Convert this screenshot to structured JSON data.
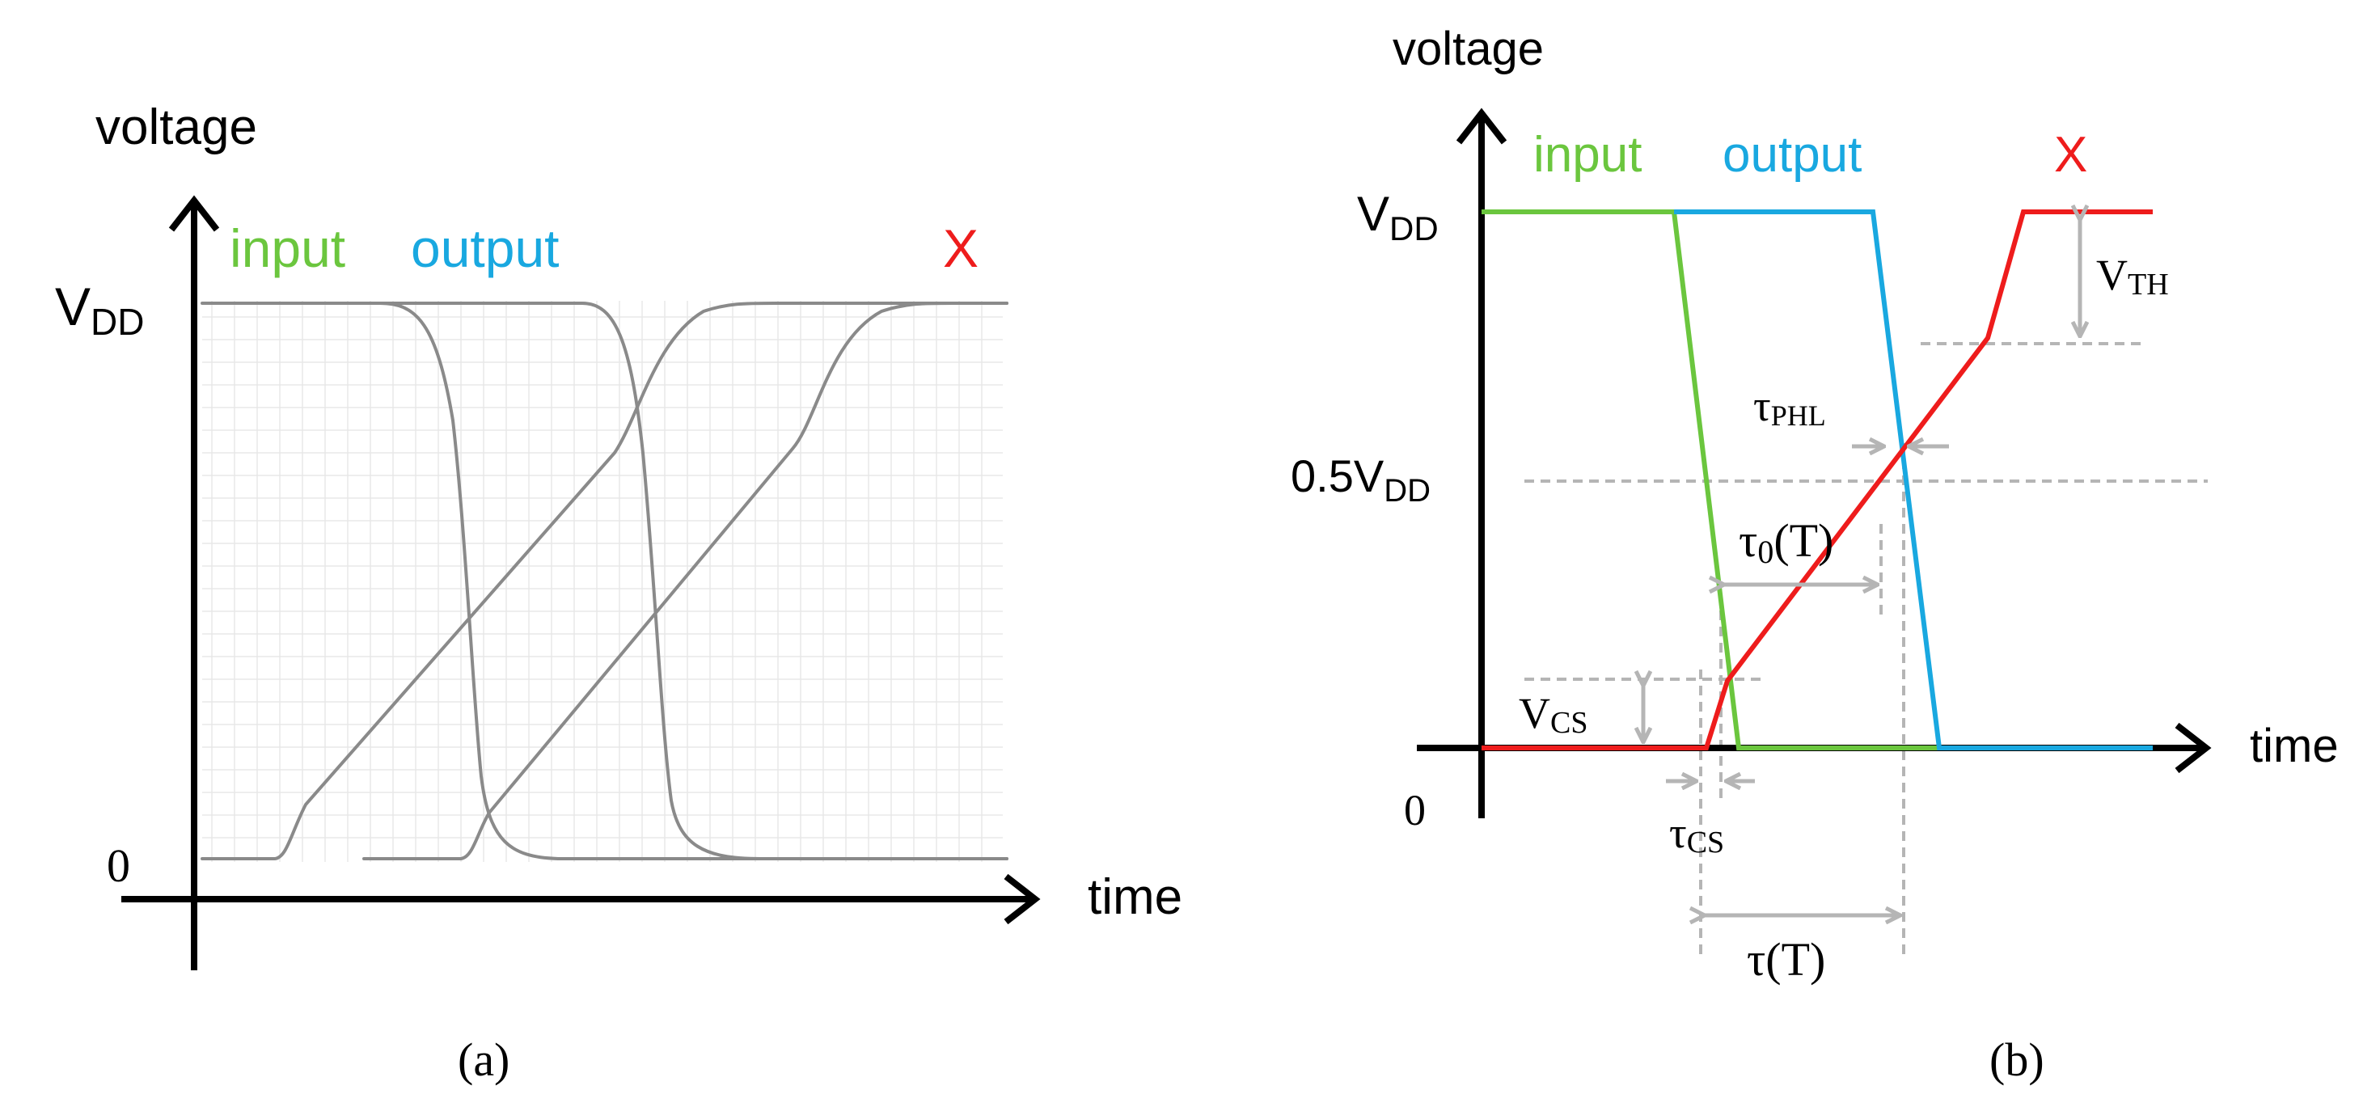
{
  "colors": {
    "input": "#6bc63e",
    "output": "#19a8e0",
    "x": "#ee1c1c",
    "axis": "#000000",
    "grid": "#e6e6e6",
    "waveform": "#8c8c8c",
    "annotation": "#b5b5b5"
  },
  "panel_a": {
    "caption": "(a)",
    "y_axis_label": "voltage",
    "x_axis_label": "time",
    "vdd_main": "V",
    "vdd_sub": "DD",
    "zero_label": "0",
    "legend": {
      "input": "input",
      "output": "output",
      "x": "X"
    }
  },
  "panel_b": {
    "caption": "(b)",
    "y_axis_label": "voltage",
    "x_axis_label": "time",
    "vdd_main": "V",
    "vdd_sub": "DD",
    "half_vdd_main": "0.5V",
    "half_vdd_sub": "DD",
    "zero_label": "0",
    "legend": {
      "input": "input",
      "output": "output",
      "x": "X"
    },
    "annotations": {
      "vth_main": "V",
      "vth_sub": "TH",
      "tphl_main": "τ",
      "tphl_sub": "PHL",
      "t0_main": "τ",
      "t0_sub": "0",
      "t0_suffix": "(T)",
      "vcs_main": "V",
      "vcs_sub": "CS",
      "tcs_main": "τ",
      "tcs_sub": "CS",
      "tau_main": "τ(T)"
    }
  }
}
